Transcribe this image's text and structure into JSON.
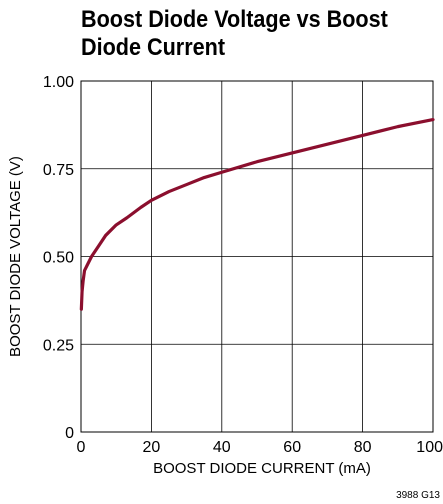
{
  "chart_data": {
    "type": "line",
    "title": "Boost Diode Voltage vs Boost Diode Current",
    "xlabel": "BOOST DIODE CURRENT (mA)",
    "ylabel": "BOOST DIODE VOLTAGE (V)",
    "xlim": [
      0,
      100
    ],
    "ylim": [
      0,
      1.0
    ],
    "xticks": [
      0,
      20,
      40,
      60,
      80,
      100
    ],
    "xtick_labels": [
      "0",
      "20",
      "40",
      "60",
      "80",
      "100"
    ],
    "yticks": [
      0,
      0.25,
      0.5,
      0.75,
      1.0
    ],
    "ytick_labels": [
      "0",
      "0.25",
      "0.50",
      "0.75",
      "1.00"
    ],
    "grid": true,
    "line_color": "#8b0f2e",
    "series": [
      {
        "x": [
          0.1,
          0.3,
          0.6,
          1,
          2,
          3,
          5,
          7,
          10,
          13,
          17,
          20,
          25,
          30,
          35,
          40,
          50,
          60,
          70,
          80,
          90,
          100
        ],
        "y": [
          0.35,
          0.4,
          0.43,
          0.46,
          0.48,
          0.5,
          0.53,
          0.56,
          0.59,
          0.61,
          0.64,
          0.66,
          0.685,
          0.705,
          0.725,
          0.74,
          0.77,
          0.795,
          0.82,
          0.845,
          0.87,
          0.89
        ]
      }
    ]
  },
  "figure_code": "3988 G13"
}
